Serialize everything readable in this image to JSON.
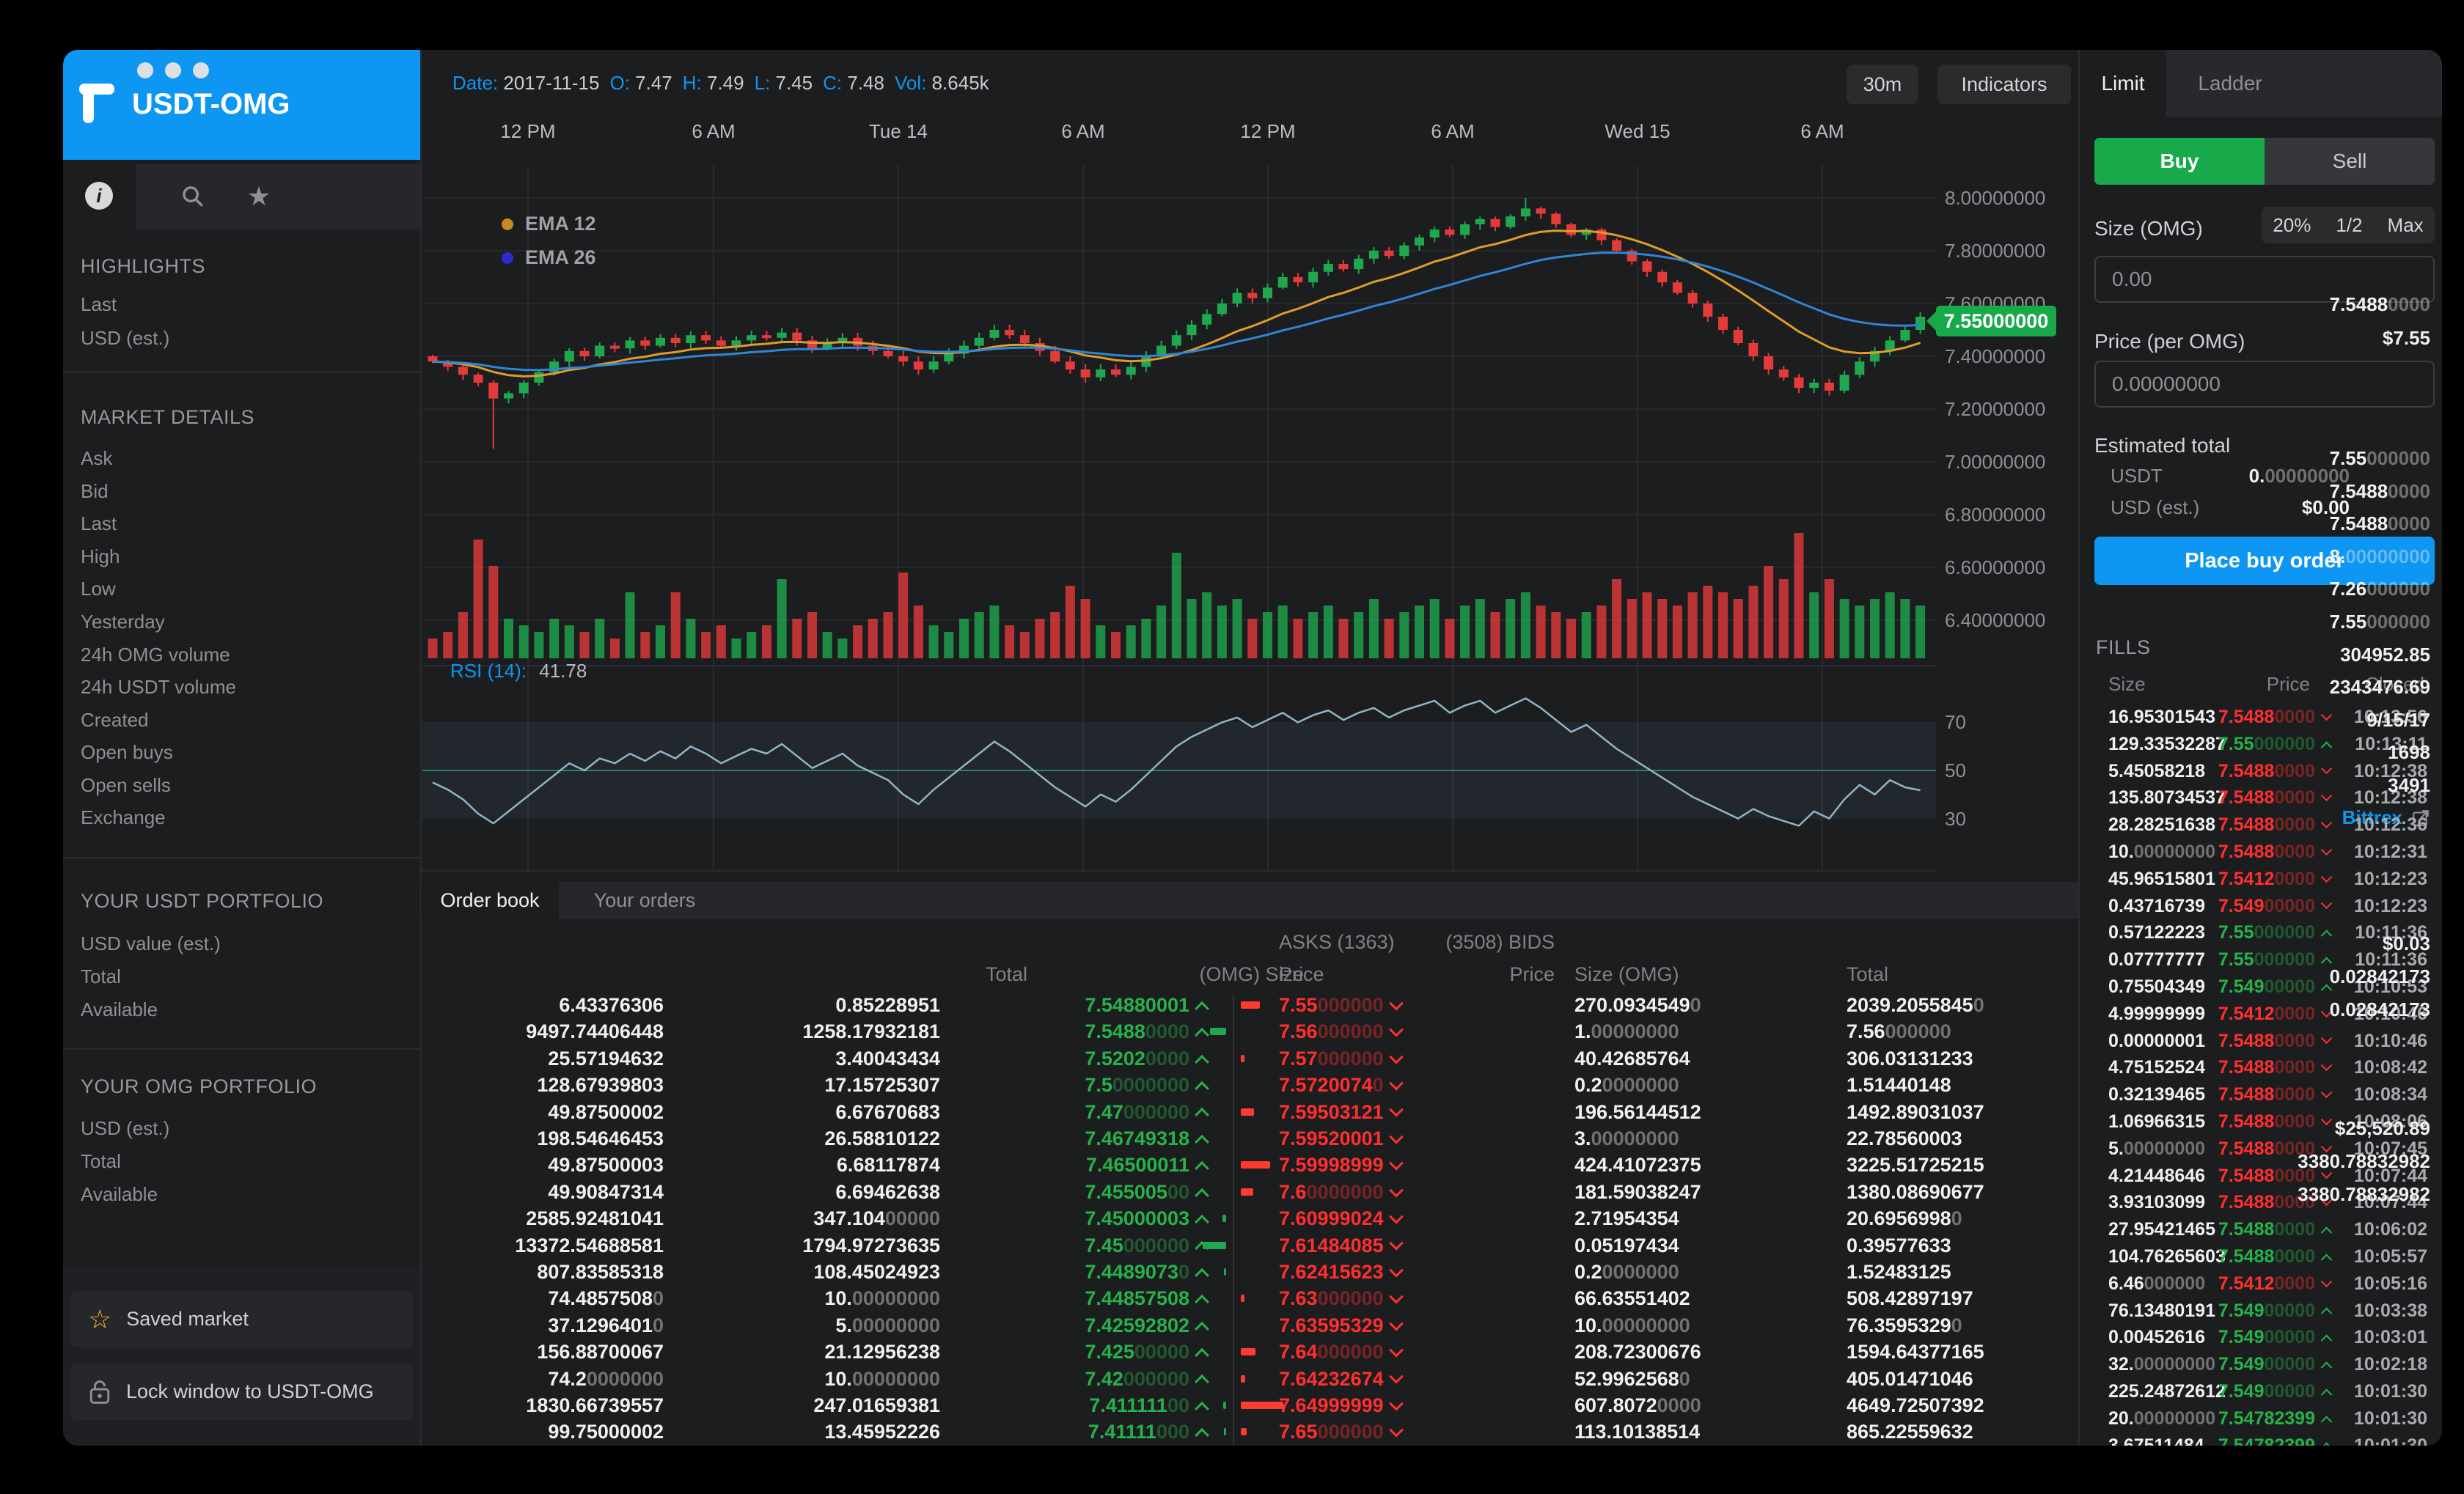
{
  "colors": {
    "accent_blue": "#0d96f2",
    "buy_green": "#17a94a",
    "bid_green": "#26b24b",
    "ask_red": "#ff2f2f",
    "candle_green": "#1fa84e",
    "candle_red": "#e33a3a",
    "ema12": "#c8891d",
    "ema26": "#2b2bd0",
    "tag_green": "#17a94a",
    "saved_star": "#e9b522"
  },
  "app": {
    "title": "USDT-OMG"
  },
  "sidebar": {
    "highlights": {
      "title": "HIGHLIGHTS",
      "rows": [
        [
          "Last",
          "7.54880000"
        ],
        [
          "USD (est.)",
          "$7.55"
        ]
      ]
    },
    "market_details": {
      "title": "MARKET DETAILS",
      "rows": [
        [
          "Ask",
          "7.55000000"
        ],
        [
          "Bid",
          "7.54880000"
        ],
        [
          "Last",
          "7.54880000"
        ],
        [
          "High",
          "8.00000000"
        ],
        [
          "Low",
          "7.26000000"
        ],
        [
          "Yesterday",
          "7.55000000"
        ],
        [
          "24h OMG volume",
          "304952.85"
        ],
        [
          "24h USDT volume",
          "2343476.69"
        ],
        [
          "Created",
          "9/15/17"
        ],
        [
          "Open buys",
          "1698"
        ],
        [
          "Open sells",
          "3491"
        ]
      ],
      "exchange_label": "Exchange",
      "exchange_value": "Bittrex"
    },
    "usdt_portfolio": {
      "title": "YOUR USDT PORTFOLIO",
      "rows": [
        [
          "USD value (est.)",
          "$0.03"
        ],
        [
          "Total",
          "0.02842173"
        ],
        [
          "Available",
          "0.02842173"
        ]
      ]
    },
    "omg_portfolio": {
      "title": "YOUR OMG PORTFOLIO",
      "rows": [
        [
          "USD (est.)",
          "$25,520.89"
        ],
        [
          "Total",
          "3380.78832982"
        ],
        [
          "Available",
          "3380.78832982"
        ]
      ]
    },
    "saved_market": "Saved market",
    "lock_window": "Lock window to USDT-OMG"
  },
  "chart": {
    "info": [
      [
        "Date:",
        "2017-11-15"
      ],
      [
        "O:",
        "7.47"
      ],
      [
        "H:",
        "7.49"
      ],
      [
        "L:",
        "7.45"
      ],
      [
        "C:",
        "7.48"
      ],
      [
        "Vol:",
        "8.645k"
      ]
    ],
    "timeframe": "30m",
    "indicators": "Indicators",
    "legend": [
      {
        "label": "EMA 12",
        "color": "#c8891d"
      },
      {
        "label": "EMA 26",
        "color": "#2b2bd0"
      }
    ],
    "x_ticks": [
      "12 PM",
      "6 AM",
      "Tue 14",
      "6 AM",
      "12 PM",
      "6 AM",
      "Wed 15",
      "6 AM"
    ],
    "y_ticks": [
      "8.00000000",
      "7.80000000",
      "7.60000000",
      "7.40000000",
      "7.20000000",
      "7.00000000",
      "6.80000000",
      "6.60000000",
      "6.40000000"
    ],
    "last_price": "7.55000000",
    "rsi": {
      "label": "RSI (14):",
      "value": "41.78",
      "ticks": [
        "70",
        "50",
        "30"
      ]
    },
    "chart_data": {
      "type": "candlestick",
      "pair": "USDT-OMG",
      "interval": "30m",
      "ohlc_readout": {
        "date": "2017-11-15",
        "open": 7.47,
        "high": 7.49,
        "low": 7.45,
        "close": 7.48,
        "volume": "8.645k"
      },
      "ylim": [
        6.4,
        8.0
      ],
      "rsi_range_band": [
        30,
        70
      ],
      "emas": [
        12,
        26
      ],
      "closes": [
        7.38,
        7.36,
        7.33,
        7.3,
        7.24,
        7.26,
        7.3,
        7.34,
        7.38,
        7.42,
        7.4,
        7.44,
        7.43,
        7.46,
        7.44,
        7.47,
        7.45,
        7.48,
        7.46,
        7.44,
        7.46,
        7.48,
        7.47,
        7.49,
        7.46,
        7.43,
        7.45,
        7.47,
        7.44,
        7.42,
        7.4,
        7.38,
        7.35,
        7.38,
        7.41,
        7.44,
        7.47,
        7.5,
        7.48,
        7.45,
        7.42,
        7.38,
        7.35,
        7.32,
        7.35,
        7.33,
        7.36,
        7.4,
        7.44,
        7.48,
        7.52,
        7.56,
        7.6,
        7.64,
        7.62,
        7.66,
        7.7,
        7.68,
        7.72,
        7.75,
        7.73,
        7.77,
        7.8,
        7.78,
        7.82,
        7.85,
        7.88,
        7.86,
        7.9,
        7.92,
        7.89,
        7.93,
        7.96,
        7.94,
        7.9,
        7.86,
        7.88,
        7.84,
        7.8,
        7.76,
        7.72,
        7.68,
        7.64,
        7.6,
        7.55,
        7.5,
        7.45,
        7.4,
        7.35,
        7.32,
        7.28,
        7.3,
        7.27,
        7.33,
        7.38,
        7.42,
        7.46,
        7.5,
        7.55
      ],
      "volumes": [
        0.15,
        0.2,
        0.35,
        0.9,
        0.7,
        0.3,
        0.25,
        0.2,
        0.3,
        0.25,
        0.2,
        0.3,
        0.15,
        0.5,
        0.2,
        0.25,
        0.5,
        0.3,
        0.2,
        0.25,
        0.15,
        0.2,
        0.25,
        0.6,
        0.3,
        0.35,
        0.2,
        0.15,
        0.25,
        0.3,
        0.35,
        0.65,
        0.4,
        0.25,
        0.2,
        0.3,
        0.35,
        0.4,
        0.25,
        0.2,
        0.3,
        0.35,
        0.55,
        0.45,
        0.25,
        0.2,
        0.25,
        0.3,
        0.4,
        0.8,
        0.45,
        0.5,
        0.4,
        0.45,
        0.3,
        0.35,
        0.4,
        0.3,
        0.35,
        0.4,
        0.3,
        0.35,
        0.45,
        0.3,
        0.35,
        0.4,
        0.45,
        0.3,
        0.4,
        0.45,
        0.35,
        0.45,
        0.5,
        0.4,
        0.35,
        0.3,
        0.35,
        0.4,
        0.6,
        0.45,
        0.5,
        0.45,
        0.4,
        0.5,
        0.55,
        0.5,
        0.45,
        0.55,
        0.7,
        0.6,
        0.95,
        0.5,
        0.6,
        0.45,
        0.4,
        0.45,
        0.5,
        0.45,
        0.4
      ],
      "rsi_series": [
        45,
        42,
        38,
        32,
        28,
        33,
        38,
        43,
        48,
        53,
        50,
        55,
        53,
        57,
        54,
        58,
        55,
        60,
        57,
        53,
        56,
        59,
        57,
        61,
        56,
        51,
        54,
        57,
        52,
        49,
        46,
        40,
        36,
        42,
        47,
        52,
        57,
        62,
        58,
        53,
        48,
        43,
        39,
        35,
        40,
        37,
        42,
        48,
        54,
        60,
        64,
        67,
        70,
        72,
        68,
        71,
        74,
        70,
        73,
        75,
        71,
        74,
        76,
        72,
        75,
        77,
        79,
        74,
        77,
        79,
        74,
        77,
        80,
        76,
        71,
        66,
        69,
        64,
        59,
        55,
        51,
        47,
        43,
        39,
        36,
        33,
        30,
        34,
        31,
        29,
        27,
        33,
        30,
        38,
        44,
        40,
        46,
        43,
        41.78
      ],
      "wick_overrides": {
        "4": {
          "l": 7.05
        },
        "72": {
          "h": 8.0
        },
        "90": {
          "l": 7.26
        }
      }
    }
  },
  "orderbook": {
    "tabs": [
      "Order book",
      "Your orders"
    ],
    "bids_title": "(3508) BIDS",
    "asks_title": "ASKS (1363)",
    "bid_columns": [
      "Total",
      "(OMG) Size",
      "Price"
    ],
    "ask_columns": [
      "Price",
      "Size (OMG)",
      "Total"
    ],
    "bids": [
      [
        "6.43376306",
        "0.85228951",
        "7.54880001",
        0
      ],
      [
        "9497.74406448",
        "1258.17932181",
        "7.54880000",
        22
      ],
      [
        "25.57194632",
        "3.40043434",
        "7.52020000",
        0
      ],
      [
        "128.67939803",
        "17.15725307",
        "7.50000000",
        0
      ],
      [
        "49.87500002",
        "6.67670683",
        "7.47000000",
        0
      ],
      [
        "198.54646453",
        "26.58810122",
        "7.46749318",
        0
      ],
      [
        "49.87500003",
        "6.68117874",
        "7.46500011",
        0
      ],
      [
        "49.90847314",
        "6.69462638",
        "7.45500500",
        0
      ],
      [
        "2585.92481041",
        "347.10400000",
        "7.45000003",
        5
      ],
      [
        "13372.54688581",
        "1794.97273635",
        "7.45000000",
        32
      ],
      [
        "807.83585318",
        "108.45024923",
        "7.44890730",
        3
      ],
      [
        "74.48575080",
        "10.00000000",
        "7.44857508",
        0
      ],
      [
        "37.12964010",
        "5.00000000",
        "7.42592802",
        0
      ],
      [
        "156.88700067",
        "21.12956238",
        "7.42500000",
        0
      ],
      [
        "74.20000000",
        "10.00000000",
        "7.42000000",
        0
      ],
      [
        "1830.66739557",
        "247.01659381",
        "7.41111100",
        4
      ],
      [
        "99.75000002",
        "13.45952226",
        "7.41111000",
        3
      ]
    ],
    "asks": [
      [
        "7.55000000",
        "270.09345490",
        "2039.20558450",
        26
      ],
      [
        "7.56000000",
        "1.00000000",
        "7.56000000",
        0
      ],
      [
        "7.57000000",
        "40.42685764",
        "306.03131233",
        5
      ],
      [
        "7.57200740",
        "0.20000000",
        "1.51440148",
        0
      ],
      [
        "7.59503121",
        "196.56144512",
        "1492.89031037",
        18
      ],
      [
        "7.59520001",
        "3.00000000",
        "22.78560003",
        0
      ],
      [
        "7.59998999",
        "424.41072375",
        "3225.51725215",
        40
      ],
      [
        "7.60000000",
        "181.59038247",
        "1380.08690677",
        17
      ],
      [
        "7.60999024",
        "2.71954354",
        "20.69569980",
        0
      ],
      [
        "7.61484085",
        "0.05197434",
        "0.39577633",
        0
      ],
      [
        "7.62415623",
        "0.20000000",
        "1.52483125",
        0
      ],
      [
        "7.63000000",
        "66.63551402",
        "508.42897197",
        5
      ],
      [
        "7.63595329",
        "10.00000000",
        "76.35953290",
        0
      ],
      [
        "7.64000000",
        "208.72300676",
        "1594.64377165",
        20
      ],
      [
        "7.64232674",
        "52.99625680",
        "405.01471046",
        6
      ],
      [
        "7.64999999",
        "607.80720000",
        "4649.72507392",
        58
      ],
      [
        "7.65000000",
        "113.10138514",
        "865.22559632",
        8
      ]
    ]
  },
  "panel": {
    "tabs": [
      "Limit",
      "Ladder"
    ],
    "buy": "Buy",
    "sell": "Sell",
    "size_label": "Size (OMG)",
    "size_shortcuts": [
      "20%",
      "1/2",
      "Max"
    ],
    "size_value": "0.00",
    "price_label": "Price (per OMG)",
    "price_value": "0.00000000",
    "estimated_total": "Estimated total",
    "est_rows": [
      [
        "USDT",
        "0.00000000"
      ],
      [
        "USD (est.)",
        "$0.00"
      ]
    ],
    "submit": "Place buy order",
    "fills_title": "FILLS",
    "fills_columns": [
      "Size",
      "Price",
      "Closed"
    ],
    "fills": [
      [
        "16.95301543",
        "7.54880000",
        "down",
        "10:13:56"
      ],
      [
        "129.33532287",
        "7.55000000",
        "up",
        "10:13:11"
      ],
      [
        "5.45058218",
        "7.54880000",
        "down",
        "10:12:38"
      ],
      [
        "135.80734537",
        "7.54880000",
        "down",
        "10:12:38"
      ],
      [
        "28.28251638",
        "7.54880000",
        "down",
        "10:12:36"
      ],
      [
        "10.00000000",
        "7.54880000",
        "down",
        "10:12:31"
      ],
      [
        "45.96515801",
        "7.54120000",
        "down",
        "10:12:23"
      ],
      [
        "0.43716739",
        "7.54900000",
        "down",
        "10:12:23"
      ],
      [
        "0.57122223",
        "7.55000000",
        "up",
        "10:11:36"
      ],
      [
        "0.07777777",
        "7.55000000",
        "up",
        "10:11:36"
      ],
      [
        "0.75504349",
        "7.54900000",
        "up",
        "10:10:53"
      ],
      [
        "4.99999999",
        "7.54120000",
        "down",
        "10:10:46"
      ],
      [
        "0.00000001",
        "7.54880000",
        "down",
        "10:10:46"
      ],
      [
        "4.75152524",
        "7.54880000",
        "down",
        "10:08:42"
      ],
      [
        "0.32139465",
        "7.54880000",
        "down",
        "10:08:34"
      ],
      [
        "1.06966315",
        "7.54880000",
        "down",
        "10:08:06"
      ],
      [
        "5.00000000",
        "7.54880000",
        "down",
        "10:07:45"
      ],
      [
        "4.21448646",
        "7.54880000",
        "down",
        "10:07:44"
      ],
      [
        "3.93103099",
        "7.54880000",
        "down",
        "10:07:44"
      ],
      [
        "27.95421465",
        "7.54880000",
        "up",
        "10:06:02"
      ],
      [
        "104.76265603",
        "7.54880000",
        "up",
        "10:05:57"
      ],
      [
        "6.46000000",
        "7.54120000",
        "down",
        "10:05:16"
      ],
      [
        "76.13480191",
        "7.54900000",
        "up",
        "10:03:38"
      ],
      [
        "0.00452616",
        "7.54900000",
        "up",
        "10:03:01"
      ],
      [
        "32.00000000",
        "7.54900000",
        "up",
        "10:02:18"
      ],
      [
        "225.24872612",
        "7.54900000",
        "up",
        "10:01:30"
      ],
      [
        "20.00000000",
        "7.54782399",
        "up",
        "10:01:30"
      ],
      [
        "3.67511484",
        "7.54782399",
        "up",
        "10:01:30"
      ]
    ]
  }
}
